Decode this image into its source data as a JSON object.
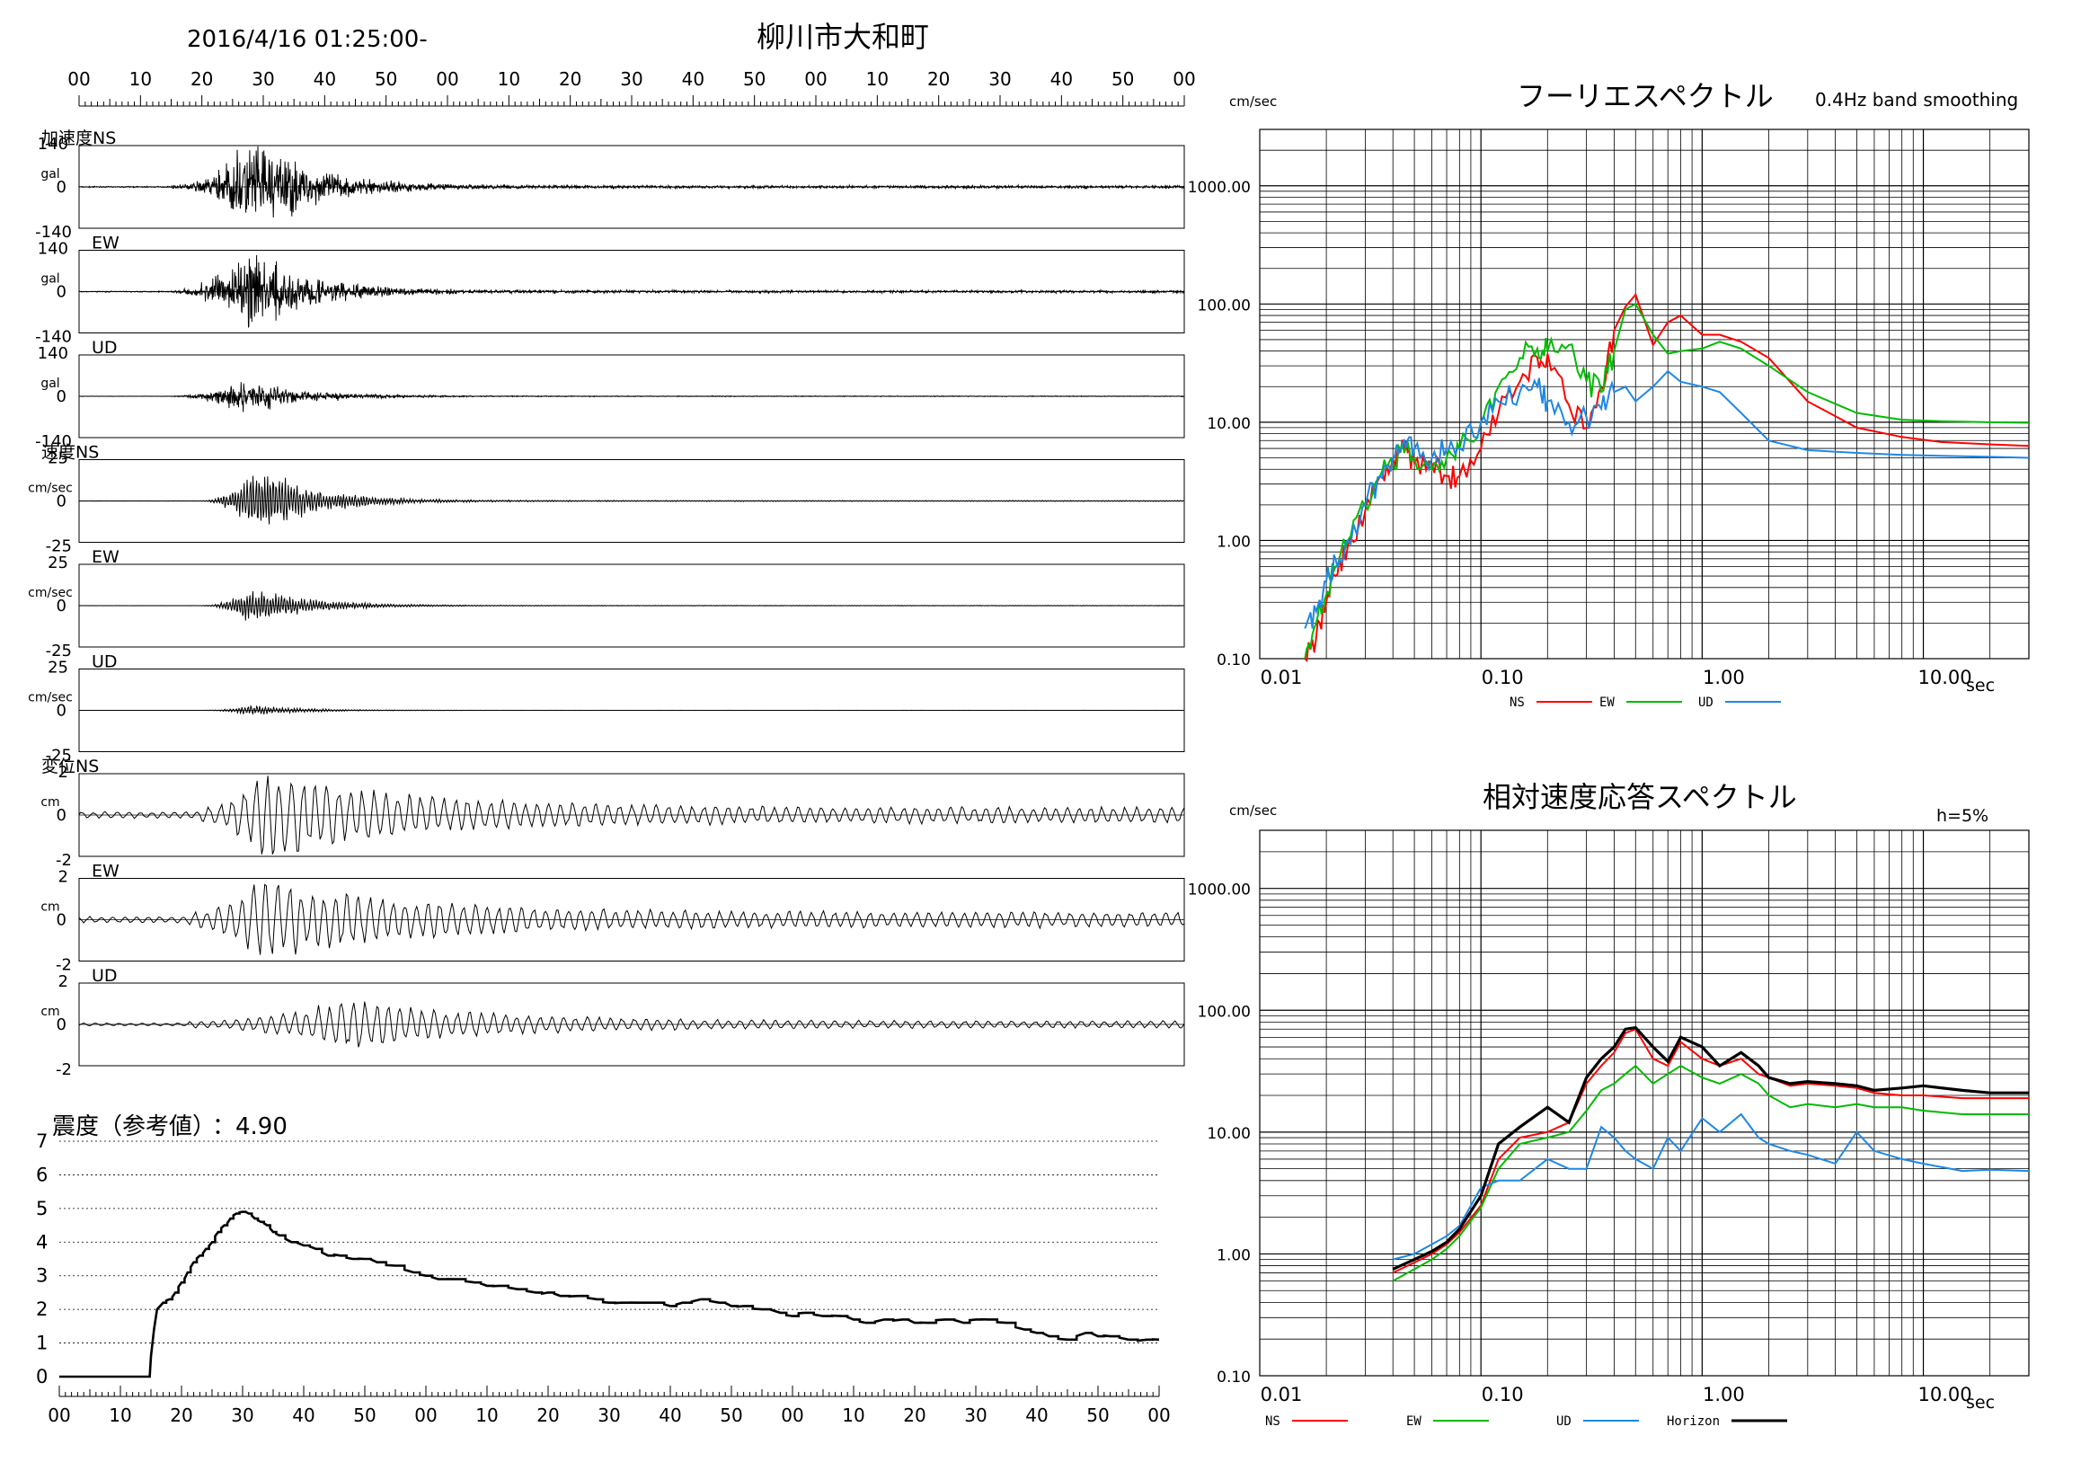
{
  "header": {
    "datetime": "2016/4/16 01:25:00-",
    "station": "柳川市大和町",
    "time_ticks": [
      "00",
      "10",
      "20",
      "30",
      "40",
      "50",
      "00",
      "10",
      "20",
      "30",
      "40",
      "50",
      "00",
      "10",
      "20",
      "30",
      "40",
      "50",
      "00"
    ]
  },
  "waveforms": {
    "acceleration": {
      "group_label": "加速度",
      "unit": "gal",
      "range": [
        -140,
        140
      ],
      "tick_labels": [
        "140",
        "0",
        "-140"
      ],
      "components": [
        {
          "label": "NS",
          "onset_s": 15,
          "peak_s": 29,
          "amp_frac": 0.98,
          "noise_frac": 0.03
        },
        {
          "label": "EW",
          "onset_s": 15,
          "peak_s": 28,
          "amp_frac": 0.88,
          "noise_frac": 0.03
        },
        {
          "label": "UD",
          "onset_s": 15,
          "peak_s": 27,
          "amp_frac": 0.38,
          "noise_frac": 0.02
        }
      ]
    },
    "velocity": {
      "group_label": "速度",
      "unit": "cm/sec",
      "range": [
        -25,
        25
      ],
      "tick_labels": [
        "25",
        "0",
        "-25"
      ],
      "components": [
        {
          "label": "NS",
          "onset_s": 20,
          "peak_s": 29,
          "amp_frac": 0.85,
          "noise_frac": 0.015
        },
        {
          "label": "EW",
          "onset_s": 20,
          "peak_s": 28,
          "amp_frac": 0.45,
          "noise_frac": 0.015
        },
        {
          "label": "UD",
          "onset_s": 20,
          "peak_s": 28,
          "amp_frac": 0.12,
          "noise_frac": 0.01
        }
      ]
    },
    "displacement": {
      "group_label": "変位",
      "unit": "cm",
      "range": [
        -2,
        2
      ],
      "tick_labels": [
        "2",
        "0",
        "-2"
      ],
      "components": [
        {
          "label": "NS",
          "onset_s": 20,
          "peak_s": 30,
          "amp_frac": 0.95,
          "noise_frac": 0.2
        },
        {
          "label": "EW",
          "onset_s": 18,
          "peak_s": 30,
          "amp_frac": 0.85,
          "noise_frac": 0.22
        },
        {
          "label": "UD",
          "onset_s": 18,
          "peak_s": 44,
          "amp_frac": 0.55,
          "noise_frac": 0.15
        }
      ]
    }
  },
  "intensity": {
    "label": "震度（参考値）",
    "value_text": "：4.90",
    "y_ticks": [
      "0",
      "1",
      "2",
      "3",
      "4",
      "5",
      "6",
      "7"
    ],
    "chart_data": {
      "type": "line",
      "xlabel": "",
      "ylabel": "",
      "ylim": [
        0,
        7
      ],
      "x": [
        0,
        14.8,
        15.0,
        15.5,
        16,
        17,
        18,
        19,
        20,
        21,
        22,
        23,
        24,
        25,
        26,
        27,
        28,
        29,
        30,
        31,
        32,
        33,
        34,
        35,
        36,
        38,
        40,
        42,
        44,
        46,
        48,
        50,
        52,
        55,
        58,
        60,
        62,
        65,
        68,
        70,
        72,
        75,
        78,
        80,
        82,
        85,
        88,
        90,
        92,
        95,
        98,
        100,
        102,
        105,
        108,
        110,
        112,
        115,
        118,
        120,
        122,
        125,
        128,
        130,
        132,
        135,
        138,
        140,
        142,
        145,
        148,
        150,
        152,
        155,
        158,
        160,
        162,
        165,
        168,
        170,
        172,
        175,
        178,
        180
      ],
      "y": [
        0,
        0,
        0.6,
        1.4,
        2.0,
        2.2,
        2.3,
        2.5,
        2.8,
        3.1,
        3.4,
        3.6,
        3.8,
        4.0,
        4.3,
        4.5,
        4.7,
        4.85,
        4.9,
        4.85,
        4.7,
        4.6,
        4.5,
        4.3,
        4.2,
        4.0,
        3.9,
        3.8,
        3.6,
        3.6,
        3.5,
        3.5,
        3.4,
        3.3,
        3.1,
        3.0,
        2.9,
        2.9,
        2.8,
        2.7,
        2.7,
        2.6,
        2.5,
        2.5,
        2.4,
        2.4,
        2.3,
        2.2,
        2.2,
        2.2,
        2.2,
        2.1,
        2.2,
        2.3,
        2.2,
        2.1,
        2.1,
        2.0,
        1.9,
        1.8,
        1.9,
        1.8,
        1.8,
        1.7,
        1.6,
        1.7,
        1.7,
        1.6,
        1.6,
        1.7,
        1.6,
        1.7,
        1.7,
        1.6,
        1.4,
        1.3,
        1.2,
        1.1,
        1.3,
        1.2,
        1.2,
        1.1,
        1.1,
        1.1
      ]
    }
  },
  "fourier": {
    "title": "フーリエスペクトル",
    "note": "0.4Hz band smoothing",
    "unit": "cm/sec",
    "x_unit": "sec",
    "y_labels": [
      "0.10",
      "1.00",
      "10.00",
      "100.00",
      "1000.00"
    ],
    "x_labels": [
      "0.01",
      "0.10",
      "1.00",
      "10.00"
    ],
    "chart_data": {
      "type": "line",
      "xlabel": "sec",
      "ylabel": "cm/sec",
      "xlim": [
        0.01,
        30
      ],
      "ylim": [
        0.1,
        3000
      ],
      "x_scale": "log",
      "y_scale": "log",
      "x": [
        0.016,
        0.018,
        0.02,
        0.022,
        0.025,
        0.03,
        0.035,
        0.04,
        0.045,
        0.05,
        0.06,
        0.07,
        0.08,
        0.1,
        0.12,
        0.15,
        0.18,
        0.2,
        0.25,
        0.3,
        0.35,
        0.4,
        0.45,
        0.5,
        0.6,
        0.7,
        0.8,
        1.0,
        1.2,
        1.5,
        2.0,
        3.0,
        5.0,
        8.0,
        12.0,
        20.0,
        30.0
      ],
      "series": [
        {
          "name": "NS",
          "color": "#ff0000",
          "values": [
            0.1,
            0.15,
            0.3,
            0.5,
            0.9,
            1.8,
            3.5,
            5,
            6,
            4.5,
            4.5,
            3.5,
            3.5,
            6,
            12,
            22,
            35,
            38,
            14,
            9,
            20,
            60,
            95,
            120,
            45,
            70,
            80,
            55,
            55,
            48,
            35,
            15,
            9,
            7.5,
            6.8,
            6.5,
            6.3
          ]
        },
        {
          "name": "EW",
          "color": "#00bb00",
          "values": [
            0.1,
            0.2,
            0.35,
            0.6,
            1.0,
            2.0,
            3.5,
            4.5,
            5.5,
            5,
            4,
            5,
            6,
            10,
            20,
            35,
            42,
            40,
            45,
            22,
            18,
            40,
            90,
            100,
            55,
            38,
            40,
            42,
            48,
            42,
            30,
            18,
            12,
            10.5,
            10.2,
            10.0,
            9.9
          ]
        },
        {
          "name": "UD",
          "color": "#1e88e5",
          "values": [
            0.18,
            0.25,
            0.45,
            0.7,
            1.0,
            2.0,
            3.5,
            5,
            7,
            6,
            5,
            6,
            6,
            10,
            15,
            18,
            20,
            15,
            10,
            11,
            13,
            18,
            20,
            15,
            20,
            27,
            22,
            20,
            18,
            12,
            7,
            5.8,
            5.5,
            5.3,
            5.2,
            5.1,
            5.0
          ]
        }
      ]
    },
    "legend": [
      "NS",
      "EW",
      "UD"
    ]
  },
  "response": {
    "title": "相対速度応答スペクトル",
    "damping": "h=5%",
    "unit": "cm/sec",
    "x_unit": "sec",
    "y_labels": [
      "0.10",
      "1.00",
      "10.00",
      "100.00",
      "1000.00"
    ],
    "x_labels": [
      "0.01",
      "0.10",
      "1.00",
      "10.00"
    ],
    "chart_data": {
      "type": "line",
      "xlabel": "sec",
      "ylabel": "cm/sec",
      "xlim": [
        0.01,
        30
      ],
      "ylim": [
        0.1,
        3000
      ],
      "x_scale": "log",
      "y_scale": "log",
      "x": [
        0.04,
        0.05,
        0.06,
        0.07,
        0.08,
        0.1,
        0.12,
        0.15,
        0.2,
        0.25,
        0.3,
        0.35,
        0.4,
        0.45,
        0.5,
        0.6,
        0.7,
        0.8,
        1.0,
        1.2,
        1.5,
        1.8,
        2.0,
        2.5,
        3.0,
        4.0,
        5.0,
        6.0,
        8.0,
        10.0,
        15.0,
        20.0,
        30.0
      ],
      "series": [
        {
          "name": "NS",
          "color": "#ff0000",
          "values": [
            0.7,
            0.85,
            1.0,
            1.2,
            1.5,
            2.5,
            6,
            9,
            10,
            12,
            25,
            35,
            45,
            65,
            70,
            40,
            35,
            55,
            40,
            35,
            40,
            30,
            28,
            24,
            25,
            24,
            23,
            21,
            20,
            20,
            19,
            19,
            19
          ]
        },
        {
          "name": "EW",
          "color": "#00bb00",
          "values": [
            0.6,
            0.75,
            0.9,
            1.1,
            1.4,
            2.4,
            5,
            8,
            9,
            10,
            15,
            22,
            25,
            30,
            35,
            25,
            30,
            35,
            28,
            25,
            30,
            25,
            20,
            16,
            17,
            16,
            17,
            16,
            16,
            15,
            14,
            14,
            14
          ]
        },
        {
          "name": "UD",
          "color": "#1e88e5",
          "values": [
            0.9,
            1.0,
            1.2,
            1.4,
            1.7,
            3.5,
            4,
            4,
            6,
            5,
            5,
            11,
            9,
            7,
            6,
            5,
            9,
            7,
            13,
            10,
            14,
            9,
            8,
            7,
            6.5,
            5.5,
            10,
            7,
            6,
            5.5,
            4.8,
            4.9,
            4.8
          ]
        },
        {
          "name": "Horizon",
          "color": "#000000",
          "values": [
            0.75,
            0.9,
            1.05,
            1.25,
            1.6,
            3,
            8,
            11,
            16,
            12,
            28,
            40,
            50,
            70,
            72,
            50,
            38,
            60,
            50,
            35,
            45,
            35,
            28,
            25,
            26,
            25,
            24,
            22,
            23,
            24,
            22,
            21,
            21
          ]
        }
      ]
    },
    "legend": [
      "NS",
      "EW",
      "UD",
      "Horizon"
    ]
  }
}
